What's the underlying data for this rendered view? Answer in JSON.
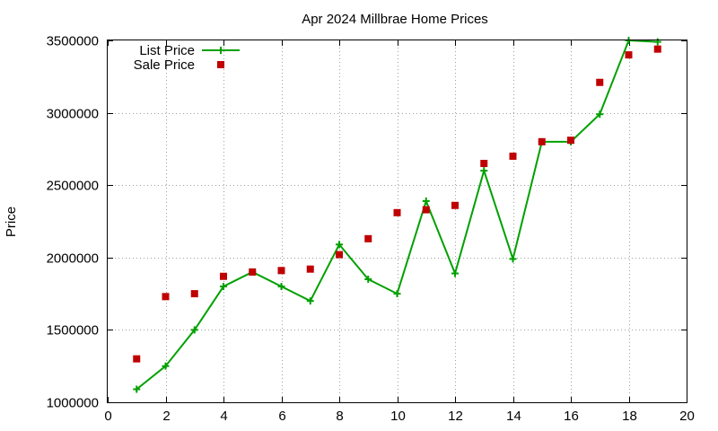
{
  "chart_data": {
    "type": "line",
    "title": "Apr 2024 Millbrae Home Prices",
    "xlabel": "",
    "ylabel": "Price",
    "xlim": [
      0,
      20
    ],
    "ylim": [
      1000000,
      3500000
    ],
    "xticks": [
      0,
      2,
      4,
      6,
      8,
      10,
      12,
      14,
      16,
      18,
      20
    ],
    "yticks": [
      1000000,
      1500000,
      2000000,
      2500000,
      3000000,
      3500000
    ],
    "x_tick_labels": [
      "0",
      "2",
      "4",
      "6",
      "8",
      "10",
      "12",
      "14",
      "16",
      "18",
      "20"
    ],
    "y_tick_labels": [
      "1000000",
      "1500000",
      "2000000",
      "2500000",
      "3000000",
      "3500000"
    ],
    "grid": true,
    "legend_position": "top-left",
    "series": [
      {
        "name": "List Price",
        "style": "line+plus",
        "color": "#00a000",
        "x": [
          1,
          2,
          3,
          4,
          5,
          6,
          7,
          8,
          9,
          10,
          11,
          12,
          13,
          14,
          15,
          16,
          17,
          18,
          19
        ],
        "values": [
          1090000,
          1250000,
          1500000,
          1800000,
          1900000,
          1800000,
          1700000,
          2090000,
          1850000,
          1750000,
          2390000,
          1890000,
          2600000,
          1990000,
          2800000,
          2800000,
          2990000,
          3500000,
          3490000
        ]
      },
      {
        "name": "Sale Price",
        "style": "square",
        "color": "#c00000",
        "x": [
          1,
          2,
          3,
          4,
          5,
          6,
          7,
          8,
          9,
          10,
          11,
          12,
          13,
          14,
          15,
          16,
          17,
          18,
          19
        ],
        "values": [
          1300000,
          1730000,
          1750000,
          1870000,
          1900000,
          1910000,
          1920000,
          2020000,
          2130000,
          2310000,
          2330000,
          2360000,
          2650000,
          2700000,
          2800000,
          2810000,
          3210000,
          3400000,
          3440000
        ]
      }
    ]
  }
}
